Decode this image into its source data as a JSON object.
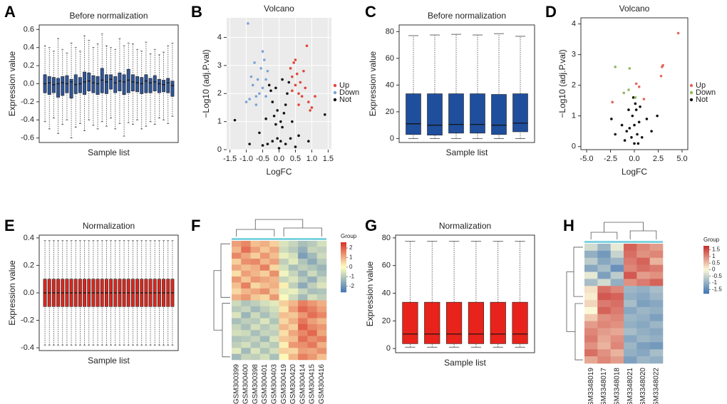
{
  "chart_data": [
    {
      "type": "box",
      "label": "A",
      "title": "Before normalization",
      "x_label": "Sample list",
      "y_label": "Expression value",
      "color": "#2f5597",
      "ylim": [
        -0.65,
        0.65
      ],
      "yticks": [
        -0.6,
        -0.4,
        -0.2,
        {
          "value": 0,
          "label": "0.0"
        },
        0.2,
        0.4,
        0.6
      ],
      "low": [
        -0.42,
        -0.5,
        -0.38,
        -0.55,
        -0.45,
        -0.4,
        -0.6,
        -0.48,
        -0.44,
        -0.52,
        -0.4,
        -0.46,
        -0.5,
        -0.42,
        -0.47,
        -0.38,
        -0.5,
        -0.44,
        -0.58,
        -0.43,
        -0.45,
        -0.4,
        -0.5,
        -0.47,
        -0.42,
        -0.45,
        -0.38,
        -0.4,
        -0.44,
        -0.36
      ],
      "q1": [
        -0.1,
        -0.12,
        -0.1,
        -0.15,
        -0.13,
        -0.1,
        -0.16,
        -0.11,
        -0.1,
        -0.12,
        -0.08,
        -0.1,
        -0.12,
        -0.1,
        -0.11,
        -0.06,
        -0.1,
        -0.08,
        -0.12,
        -0.1,
        -0.08,
        -0.09,
        -0.11,
        -0.1,
        -0.1,
        -0.08,
        -0.1,
        -0.09,
        -0.1,
        -0.14
      ],
      "median": [
        0,
        0.01,
        -0.01,
        0,
        0.01,
        0,
        0.02,
        -0.01,
        0,
        0.02,
        0.03,
        0.01,
        0,
        0.04,
        0.02,
        0.05,
        0.01,
        0.03,
        0.02,
        0.04,
        0.02,
        0.01,
        0,
        0.03,
        0.01,
        0.02,
        0,
        -0.01,
        0.01,
        -0.02
      ],
      "q3": [
        0.1,
        0.08,
        0.07,
        0.06,
        0.08,
        0.09,
        0.05,
        0.1,
        0.07,
        0.13,
        0.12,
        0.09,
        0.08,
        0.17,
        0.1,
        0.1,
        0.08,
        0.12,
        0.1,
        0.16,
        0.1,
        0.08,
        0.07,
        0.1,
        0.06,
        0.09,
        0.05,
        0.04,
        0.06,
        0.03
      ],
      "high": [
        0.42,
        0.4,
        0.36,
        0.5,
        0.38,
        0.34,
        0.45,
        0.4,
        0.36,
        0.53,
        0.48,
        0.4,
        0.44,
        0.55,
        0.42,
        0.4,
        0.38,
        0.5,
        0.42,
        0.45,
        0.44,
        0.38,
        0.36,
        0.46,
        0.33,
        0.38,
        0.32,
        0.35,
        0.42,
        0.45
      ]
    },
    {
      "type": "scatter",
      "label": "B",
      "title": "Volcano",
      "x_label": "LogFC",
      "y_label": "−Log10 (adj.P.val)",
      "grid": true,
      "xlim": [
        -1.6,
        1.6
      ],
      "xticks": [
        -1.5,
        {
          "value": -1,
          "label": "-1.0"
        },
        -0.5,
        {
          "value": 0,
          "label": "0.0"
        },
        0.5,
        {
          "value": 1,
          "label": "1.0"
        },
        1.5
      ],
      "ylim": [
        0,
        4.7
      ],
      "yticks": [
        0,
        1,
        2,
        3,
        4
      ],
      "series": [
        {
          "name": "Up",
          "color": "#e0463a",
          "x": [
            0.35,
            0.4,
            0.45,
            0.5,
            0.55,
            0.6,
            0.65,
            0.7,
            0.75,
            0.8,
            0.9,
            0.85,
            1.0,
            1.1,
            0.95,
            0.5,
            0.4,
            0.6
          ],
          "values": [
            2.9,
            2.6,
            3.1,
            2.3,
            2.7,
            2.0,
            2.4,
            1.9,
            2.8,
            2.2,
            1.7,
            3.7,
            1.5,
            1.9,
            1.4,
            3.2,
            2.1,
            1.6
          ]
        },
        {
          "name": "Down",
          "color": "#7ba3d6",
          "x": [
            -0.35,
            -0.4,
            -0.45,
            -0.5,
            -0.55,
            -0.6,
            -0.65,
            -0.7,
            -0.75,
            -0.8,
            -0.9,
            -1.0,
            -0.95,
            -0.5,
            -0.4,
            -0.85,
            -0.7
          ],
          "values": [
            2.8,
            2.5,
            3.2,
            2.2,
            2.9,
            2.0,
            2.5,
            1.9,
            3.1,
            2.3,
            1.8,
            1.7,
            4.5,
            3.5,
            1.9,
            2.6,
            1.6
          ]
        },
        {
          "name": "Not",
          "color": "#111111",
          "x": [
            0,
            0.05,
            -0.05,
            0.1,
            -0.1,
            0.15,
            -0.15,
            0.2,
            -0.2,
            0.25,
            -0.25,
            0.3,
            -0.3,
            0.4,
            -0.4,
            0.6,
            -0.6,
            0.2,
            -0.2,
            0.35,
            -0.35,
            0.05,
            -0.05,
            0.1,
            -0.1,
            0.9,
            -0.9,
            1.4,
            -1.35,
            0.5,
            -0.5
          ],
          "values": [
            0.05,
            0.3,
            0.4,
            0.8,
            0.9,
            1.3,
            1.2,
            1.6,
            1.7,
            2.0,
            2.1,
            2.4,
            2.3,
            1.0,
            1.1,
            0.5,
            0.6,
            0.2,
            0.3,
            0.4,
            0.2,
            1.0,
            1.4,
            2.5,
            2.2,
            0.3,
            0.2,
            1.25,
            1.05,
            0.1,
            0.15
          ]
        }
      ]
    },
    {
      "type": "box",
      "label": "C",
      "title": "Before normalization",
      "x_label": "Sample list",
      "y_label": "Expression value",
      "color": "#1f4e9c",
      "ylim": [
        -3,
        85
      ],
      "yticks": [
        0,
        20,
        40,
        60,
        80
      ],
      "low": [
        0,
        0,
        0,
        0,
        0,
        0
      ],
      "q1": [
        3,
        2.5,
        4,
        4,
        3,
        5
      ],
      "median": [
        11,
        10,
        10.5,
        10.5,
        10,
        11.5
      ],
      "q3": [
        33.5,
        33.5,
        33.5,
        33.5,
        33,
        33.5
      ],
      "high": [
        77,
        77.5,
        78,
        77.5,
        78.5,
        76.5
      ]
    },
    {
      "type": "scatter",
      "label": "D",
      "title": "Volcano",
      "x_label": "LogFC",
      "y_label": "−Log10 (adj.P.val)",
      "grid": false,
      "xlim": [
        -5.6,
        5.6
      ],
      "xticks": [
        {
          "value": -5,
          "label": "-5.0"
        },
        -2.5,
        {
          "value": 0,
          "label": "0.0"
        },
        2.5,
        {
          "value": 5,
          "label": "5.0"
        }
      ],
      "ylim": [
        -0.1,
        4.2
      ],
      "yticks": [
        0,
        1,
        2,
        3,
        4
      ],
      "series": [
        {
          "name": "Up",
          "color": "#e0675a",
          "x": [
            4.6,
            3,
            2.9,
            2.8,
            0.2,
            0.5,
            1,
            -2.3
          ],
          "values": [
            3.7,
            2.65,
            2.6,
            2.3,
            2.05,
            1.95,
            1.55,
            1.45
          ]
        },
        {
          "name": "Down",
          "color": "#8fbc5a",
          "x": [
            -2,
            -0.5,
            -0.6,
            -1.1,
            0.1
          ],
          "values": [
            2.6,
            2.55,
            1.85,
            1.75,
            1.6
          ]
        },
        {
          "name": "Not",
          "color": "#111111",
          "x": [
            0,
            -0.3,
            0.3,
            -0.5,
            0.5,
            -0.2,
            0.2,
            0.1,
            -0.8,
            0.8,
            -1.3,
            1.3,
            -2,
            1.8,
            -1,
            0,
            -0.1,
            0.4,
            2.4,
            -2.4,
            0.6,
            -0.6
          ],
          "values": [
            0.1,
            0.3,
            0.4,
            0.6,
            0.8,
            1,
            1.2,
            1.4,
            0.5,
            0.3,
            0.7,
            0.9,
            0.4,
            0.5,
            0.2,
            0.7,
            1.6,
            0.1,
            1,
            0.9,
            1.3,
            1.2
          ]
        }
      ]
    },
    {
      "type": "box",
      "label": "E",
      "title": "Normalization",
      "x_label": "Sample list",
      "y_label": "Expression value",
      "color": "#d9281e",
      "ylim": [
        -0.42,
        0.42
      ],
      "yticks": [
        -0.4,
        -0.2,
        {
          "value": 0,
          "label": "0.0"
        },
        0.2,
        0.4
      ],
      "low": [
        -0.38,
        -0.38,
        -0.38,
        -0.38,
        -0.38,
        -0.38,
        -0.38,
        -0.38,
        -0.38,
        -0.38,
        -0.38,
        -0.38,
        -0.38,
        -0.38,
        -0.38,
        -0.38,
        -0.38,
        -0.38,
        -0.38,
        -0.38,
        -0.38,
        -0.38,
        -0.38,
        -0.38,
        -0.38,
        -0.38,
        -0.38,
        -0.38,
        -0.38,
        -0.38
      ],
      "q1": [
        -0.1,
        -0.1,
        -0.1,
        -0.1,
        -0.1,
        -0.1,
        -0.1,
        -0.1,
        -0.1,
        -0.1,
        -0.1,
        -0.1,
        -0.1,
        -0.1,
        -0.1,
        -0.1,
        -0.1,
        -0.1,
        -0.1,
        -0.1,
        -0.1,
        -0.1,
        -0.1,
        -0.1,
        -0.1,
        -0.1,
        -0.1,
        -0.1,
        -0.1,
        -0.1
      ],
      "median": [
        0,
        0,
        0,
        0,
        0,
        0,
        0,
        0,
        0,
        0,
        0,
        0,
        0,
        0,
        0,
        0,
        0,
        0,
        0,
        0,
        0,
        0,
        0,
        0,
        0,
        0,
        0,
        0,
        0,
        0
      ],
      "q3": [
        0.1,
        0.1,
        0.1,
        0.1,
        0.1,
        0.1,
        0.1,
        0.1,
        0.1,
        0.1,
        0.1,
        0.1,
        0.1,
        0.1,
        0.1,
        0.1,
        0.1,
        0.1,
        0.1,
        0.1,
        0.1,
        0.1,
        0.1,
        0.1,
        0.1,
        0.1,
        0.1,
        0.1,
        0.1,
        0.1
      ],
      "high": [
        0.38,
        0.38,
        0.38,
        0.38,
        0.38,
        0.38,
        0.38,
        0.38,
        0.38,
        0.38,
        0.38,
        0.38,
        0.38,
        0.38,
        0.38,
        0.38,
        0.38,
        0.38,
        0.38,
        0.38,
        0.38,
        0.38,
        0.38,
        0.38,
        0.38,
        0.38,
        0.38,
        0.38,
        0.38,
        0.38
      ]
    },
    {
      "type": "heatmap",
      "label": "F",
      "legend_title": "Group",
      "colors": [
        "#4575b4",
        "#ffffbf",
        "#d73027"
      ],
      "zlim": [
        -2.6,
        2.6
      ],
      "zticks": [
        2,
        1,
        0,
        -1,
        -2
      ],
      "columns": [
        "GSM300399",
        "GSM300400",
        "GSM300398",
        "GSM300401",
        "GSM300403",
        "GSM300419",
        "GSM300420",
        "GSM300414",
        "GSM300415",
        "GSM300416"
      ],
      "values": [
        [
          1.2,
          1.5,
          0.8,
          1.0,
          0.6,
          -0.5,
          -0.8,
          -1.2,
          -1.0,
          -0.6
        ],
        [
          0.9,
          1.8,
          1.2,
          0.7,
          1.1,
          -0.7,
          -1.0,
          -1.5,
          -0.8,
          -0.9
        ],
        [
          1.5,
          1.1,
          0.6,
          1.3,
          0.8,
          -0.3,
          -0.6,
          -1.8,
          -1.3,
          -0.7
        ],
        [
          0.6,
          1.4,
          1.5,
          0.9,
          1.2,
          -0.9,
          -0.4,
          -1.1,
          -1.6,
          -1.0
        ],
        [
          1.1,
          0.8,
          1.0,
          1.6,
          0.5,
          -0.6,
          -1.2,
          -0.9,
          -1.1,
          -1.4
        ],
        [
          0.4,
          1.2,
          0.9,
          0.6,
          1.4,
          -0.2,
          -0.8,
          -1.4,
          -0.7,
          -1.2
        ],
        [
          1.3,
          0.7,
          1.3,
          1.1,
          0.9,
          -0.8,
          -0.5,
          -1.0,
          -1.5,
          -0.8
        ],
        [
          0.8,
          1.6,
          0.5,
          0.8,
          1.0,
          0.2,
          -0.9,
          -1.6,
          -0.9,
          -0.5
        ],
        [
          0.5,
          0.9,
          1.1,
          1.4,
          0.7,
          -0.4,
          -0.3,
          -0.8,
          -1.2,
          -1.1
        ],
        [
          1.0,
          1.3,
          0.7,
          0.5,
          1.3,
          -0.1,
          -0.7,
          -1.3,
          -0.6,
          -0.9
        ],
        [
          -0.7,
          -1.1,
          -0.9,
          -0.6,
          -0.4,
          0.6,
          0.9,
          1.6,
          1.3,
          1.0
        ],
        [
          -1.0,
          -0.8,
          -1.3,
          -0.9,
          -0.6,
          0.3,
          1.2,
          1.9,
          1.6,
          1.2
        ],
        [
          -0.5,
          -1.4,
          -0.7,
          -1.2,
          -0.8,
          0.8,
          0.7,
          1.3,
          1.8,
          1.5
        ],
        [
          -1.2,
          -0.9,
          -1.0,
          -0.5,
          -1.1,
          0.5,
          1.0,
          1.7,
          1.2,
          0.9
        ],
        [
          -0.8,
          -1.2,
          -0.6,
          -1.0,
          -0.7,
          0.9,
          0.6,
          2.0,
          1.5,
          1.3
        ],
        [
          -0.6,
          -0.7,
          -1.2,
          -0.8,
          -0.9,
          0.4,
          1.1,
          1.5,
          1.9,
          1.1
        ],
        [
          -1.1,
          -1.0,
          -0.8,
          -1.3,
          -0.5,
          0.7,
          0.8,
          1.8,
          1.4,
          1.6
        ],
        [
          -0.9,
          -0.6,
          -1.1,
          -0.7,
          -1.0,
          0.2,
          1.3,
          1.4,
          1.7,
          1.0
        ],
        [
          -0.4,
          -1.3,
          -0.5,
          -1.1,
          -0.6,
          0.6,
          0.5,
          1.2,
          1.1,
          1.4
        ],
        [
          -1.3,
          -0.8,
          -0.9,
          -0.6,
          -1.2,
          0.1,
          0.9,
          1.6,
          1.3,
          0.8
        ]
      ]
    },
    {
      "type": "box",
      "label": "G",
      "title": "Normalization",
      "x_label": "Sample list",
      "y_label": "Expression value",
      "color": "#e8231b",
      "ylim": [
        -3,
        82
      ],
      "yticks": [
        0,
        20,
        40,
        60,
        80
      ],
      "low": [
        1,
        1,
        1,
        1,
        1,
        1
      ],
      "q1": [
        3.5,
        3.5,
        3.5,
        3.5,
        3.5,
        3.5
      ],
      "median": [
        10.5,
        10.5,
        10.5,
        10.5,
        10.5,
        10.5
      ],
      "q3": [
        33.5,
        33.5,
        33.5,
        33.5,
        33.5,
        33.5
      ],
      "high": [
        77.5,
        77.5,
        77.5,
        77.5,
        77.5,
        77.5
      ]
    },
    {
      "type": "heatmap",
      "label": "H",
      "legend_title": "Group",
      "colors": [
        "#3f74b3",
        "#fbf8d8",
        "#c62a2a"
      ],
      "zlim": [
        -1.8,
        1.8
      ],
      "zticks": [
        1.5,
        1,
        0.5,
        0,
        -0.5,
        -1,
        -1.5
      ],
      "columns": [
        "GSM3348019",
        "GSM3348017",
        "GSM3348018",
        "GSM3348021",
        "GSM3348020",
        "GSM3348022"
      ],
      "values": [
        [
          -0.4,
          -0.9,
          -0.2,
          1.3,
          1.0,
          0.8
        ],
        [
          -1.0,
          -1.3,
          -0.5,
          1.2,
          0.9,
          1.0
        ],
        [
          -0.6,
          -1.1,
          -0.9,
          1.1,
          1.3,
          0.6
        ],
        [
          -1.1,
          -0.8,
          -1.4,
          1.0,
          1.2,
          1.1
        ],
        [
          -0.2,
          -1.2,
          -0.6,
          1.4,
          0.8,
          0.9
        ],
        [
          -0.8,
          -0.4,
          -1.0,
          0.9,
          1.1,
          1.3
        ],
        [
          0.2,
          1.2,
          1.0,
          -0.9,
          -1.0,
          -0.8
        ],
        [
          0.1,
          1.4,
          1.3,
          -1.0,
          -1.1,
          -0.9
        ],
        [
          0.3,
          1.1,
          1.2,
          -0.8,
          -1.2,
          -1.1
        ],
        [
          0.0,
          1.3,
          1.1,
          -1.1,
          -0.9,
          -1.0
        ],
        [
          0.4,
          0.9,
          1.0,
          -0.9,
          -1.0,
          -1.2
        ],
        [
          0.8,
          1.0,
          0.9,
          -1.0,
          -1.1,
          -0.9
        ],
        [
          1.0,
          0.8,
          0.7,
          -0.8,
          -1.0,
          -1.1
        ],
        [
          1.1,
          0.7,
          0.9,
          -1.1,
          -0.9,
          -1.0
        ],
        [
          0.9,
          0.6,
          1.0,
          -0.9,
          -1.2,
          -1.3
        ],
        [
          1.2,
          0.9,
          0.6,
          -1.0,
          -1.1,
          -0.8
        ],
        [
          0.7,
          1.0,
          0.8,
          -1.2,
          -0.9,
          -1.0
        ]
      ]
    }
  ]
}
